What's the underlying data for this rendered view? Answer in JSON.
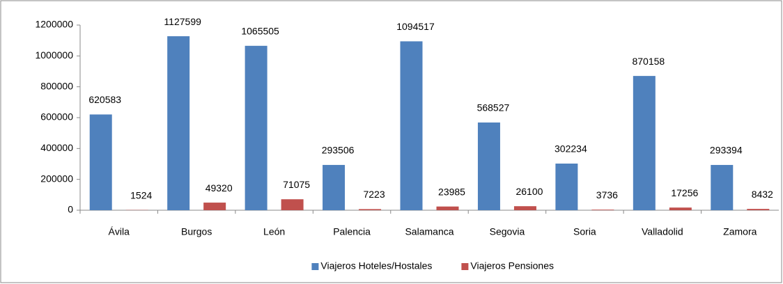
{
  "chart_data": {
    "type": "bar",
    "categories": [
      "Ávila",
      "Burgos",
      "León",
      "Palencia",
      "Salamanca",
      "Segovia",
      "Soria",
      "Valladolid",
      "Zamora"
    ],
    "series": [
      {
        "name": "Viajeros Hoteles/Hostales",
        "color": "#4f81bd",
        "values": [
          620583,
          1127599,
          1065505,
          293506,
          1094517,
          568527,
          302234,
          870158,
          293394
        ]
      },
      {
        "name": "Viajeros Pensiones",
        "color": "#c0504d",
        "values": [
          1524,
          49320,
          71075,
          7223,
          23985,
          26100,
          3736,
          17256,
          8432
        ]
      }
    ],
    "ylim": [
      0,
      1200000
    ],
    "yticks": [
      0,
      200000,
      400000,
      600000,
      800000,
      1000000,
      1200000
    ],
    "grid": false,
    "legend": "bottom"
  }
}
